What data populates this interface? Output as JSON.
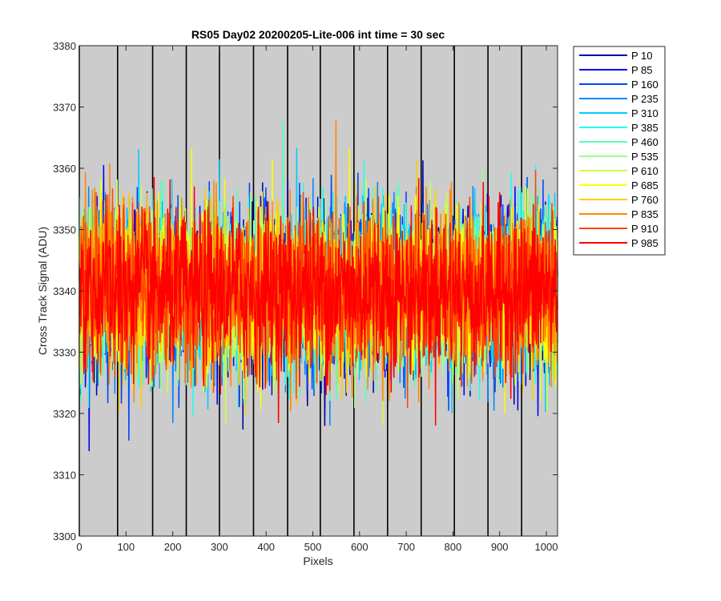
{
  "chart_data": {
    "type": "line",
    "title": "RS05 Day02 20200205-Lite-006 int time = 30 sec",
    "xlabel": "Pixels",
    "ylabel": "Cross Track Signal (ADU)",
    "xlim": [
      0,
      1024
    ],
    "ylim": [
      3300,
      3380
    ],
    "xticks": [
      0,
      100,
      200,
      300,
      400,
      500,
      600,
      700,
      800,
      900,
      1000
    ],
    "yticks": [
      3300,
      3310,
      3320,
      3330,
      3340,
      3350,
      3360,
      3370,
      3380
    ],
    "background_color": "#cccccc",
    "vertical_lines_x": [
      0,
      82,
      157,
      229,
      300,
      373,
      446,
      516,
      588,
      660,
      732,
      803,
      875,
      947
    ],
    "vertical_line_color": "#000000",
    "noise_model": {
      "mean": 3340,
      "typical_range": [
        3325,
        3355
      ],
      "extreme_range": [
        3304,
        3380
      ],
      "num_points": 1024
    },
    "legend_position": "outside-right-top",
    "series": [
      {
        "name": "P 10",
        "color": "#0000aa"
      },
      {
        "name": "P 85",
        "color": "#0000ee"
      },
      {
        "name": "P 160",
        "color": "#0044ff"
      },
      {
        "name": "P 235",
        "color": "#0088ff"
      },
      {
        "name": "P 310",
        "color": "#00ccff"
      },
      {
        "name": "P 385",
        "color": "#22ffee"
      },
      {
        "name": "P 460",
        "color": "#55ffbb"
      },
      {
        "name": "P 535",
        "color": "#99ff88"
      },
      {
        "name": "P 610",
        "color": "#ccff44"
      },
      {
        "name": "P 685",
        "color": "#ffff00"
      },
      {
        "name": "P 760",
        "color": "#ffcc00"
      },
      {
        "name": "P 835",
        "color": "#ff8800"
      },
      {
        "name": "P 910",
        "color": "#ff4400"
      },
      {
        "name": "P 985",
        "color": "#ff0000"
      }
    ]
  }
}
